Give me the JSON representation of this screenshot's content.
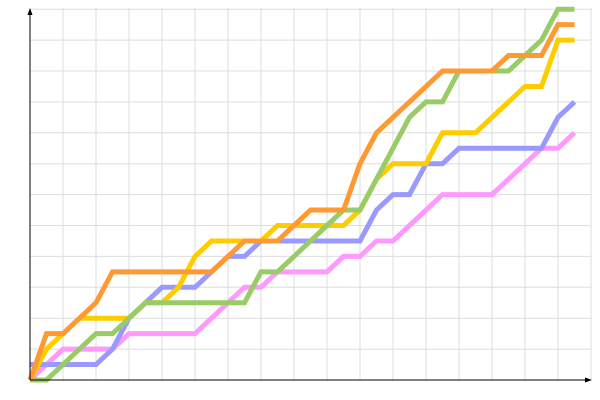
{
  "chart_data": {
    "type": "line",
    "title": "",
    "xlabel": "",
    "ylabel": "",
    "xlim": [
      0,
      34
    ],
    "ylim": [
      0,
      24
    ],
    "grid": true,
    "legend": "none",
    "x": [
      0,
      1,
      2,
      3,
      4,
      5,
      6,
      7,
      8,
      9,
      10,
      11,
      12,
      13,
      14,
      15,
      16,
      17,
      18,
      19,
      20,
      21,
      22,
      23,
      24,
      25,
      26,
      27,
      28,
      29,
      30,
      31,
      32,
      33
    ],
    "series": [
      {
        "color": "#ff99ff",
        "values": [
          0,
          1,
          2,
          2,
          2,
          2,
          3,
          3,
          3,
          3,
          3,
          4,
          5,
          6,
          6,
          7,
          7,
          7,
          7,
          8,
          8,
          9,
          9,
          10,
          11,
          12,
          12,
          12,
          12,
          13,
          14,
          15,
          15,
          16
        ]
      },
      {
        "color": "#9999ff",
        "values": [
          1,
          1,
          1,
          1,
          1,
          2,
          4,
          5,
          6,
          6,
          6,
          7,
          8,
          8,
          9,
          9,
          9,
          9,
          9,
          9,
          9,
          11,
          12,
          12,
          14,
          14,
          15,
          15,
          15,
          15,
          15,
          15,
          17,
          18
        ]
      },
      {
        "color": "#ffcc00",
        "values": [
          0,
          2,
          3,
          4,
          4,
          4,
          4,
          5,
          5,
          6,
          8,
          9,
          9,
          9,
          9,
          10,
          10,
          10,
          10,
          10,
          11,
          13,
          14,
          14,
          14,
          16,
          16,
          16,
          17,
          18,
          19,
          19,
          22,
          22
        ]
      },
      {
        "color": "#99cc66",
        "values": [
          0,
          0,
          1,
          2,
          3,
          3,
          4,
          5,
          5,
          5,
          5,
          5,
          5,
          5,
          7,
          7,
          8,
          9,
          10,
          11,
          11,
          13,
          15,
          17,
          18,
          18,
          20,
          20,
          20,
          20,
          21,
          22,
          24,
          24
        ]
      },
      {
        "color": "#ff9933",
        "values": [
          0,
          3,
          3,
          4,
          5,
          7,
          7,
          7,
          7,
          7,
          7,
          7,
          8,
          9,
          9,
          9,
          10,
          11,
          11,
          11,
          14,
          16,
          17,
          18,
          19,
          20,
          20,
          20,
          20,
          21,
          21,
          21,
          23,
          23
        ]
      }
    ]
  }
}
